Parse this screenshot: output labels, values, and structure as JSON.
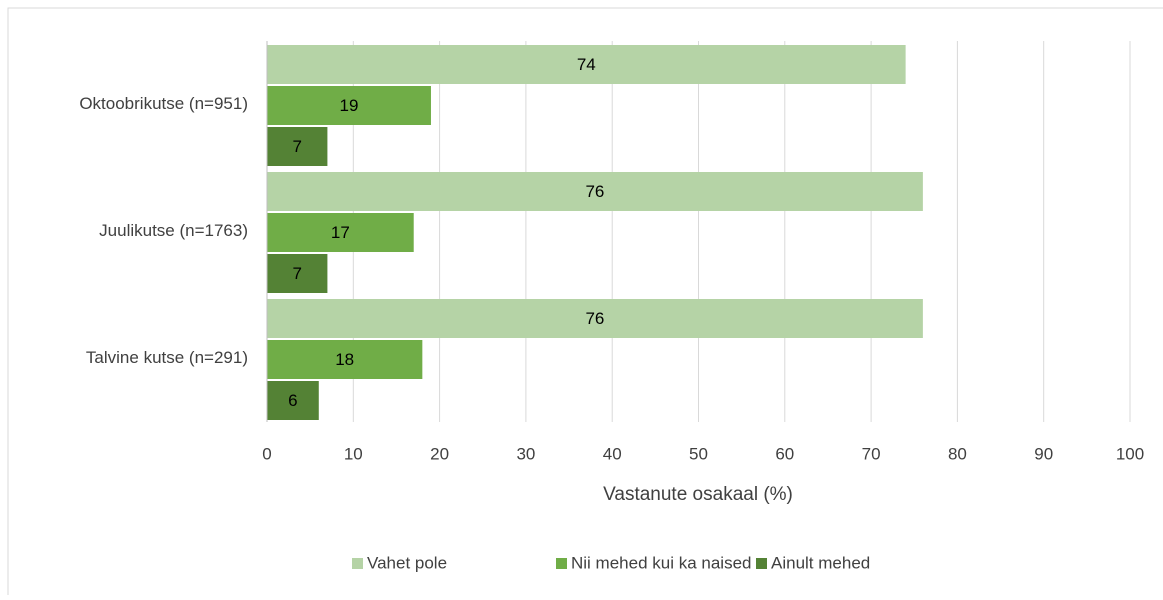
{
  "chart_data": {
    "type": "hbar",
    "categories": [
      "Oktoobrikutse (n=951)",
      "Juulikutse (n=1763)",
      "Talvine kutse (n=291)"
    ],
    "series": [
      {
        "name": "Vahet pole",
        "color": "#b5d3a6",
        "values": [
          74,
          76,
          76
        ]
      },
      {
        "name": "Nii mehed kui ka naised",
        "color": "#70ad47",
        "values": [
          19,
          17,
          18
        ]
      },
      {
        "name": "Ainult mehed",
        "color": "#548235",
        "values": [
          7,
          7,
          6
        ]
      }
    ],
    "x_label": "Vastanute osakaal (%)",
    "xlim": [
      0,
      100
    ],
    "xticks": [
      0,
      10,
      20,
      30,
      40,
      50,
      60,
      70,
      80,
      90,
      100
    ],
    "grid": true,
    "legend": "bottom"
  }
}
